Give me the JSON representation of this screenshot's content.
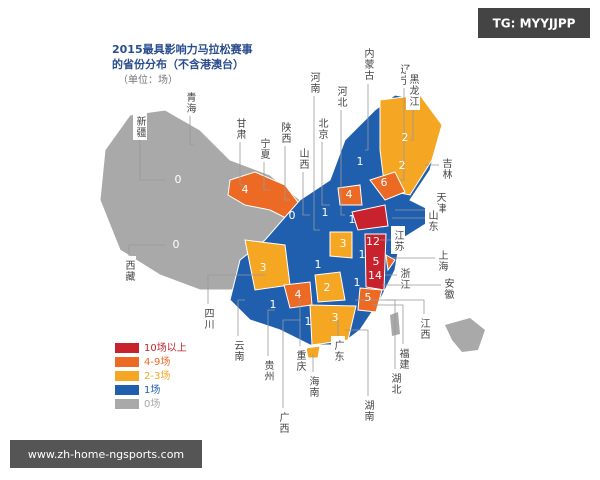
{
  "watermark_top": "TG: MYYJJPP",
  "watermark_bottom": "www.zh-home-ngsports.com",
  "title": [
    "2015最具影响力马拉松赛事",
    "的省份分布（不含港澳台）"
  ],
  "unit": "（单位：场）",
  "legend": [
    {
      "label": "10场以上",
      "color": "#c8232c"
    },
    {
      "label": "4-9场",
      "color": "#ec6a24"
    },
    {
      "label": "2-3场",
      "color": "#f5a623"
    },
    {
      "label": "1场",
      "color": "#1f5fae"
    },
    {
      "label": "0场",
      "color": "#a9a9a9"
    }
  ],
  "provinces": [
    "新疆",
    "青海",
    "甘肃",
    "宁夏",
    "陕西",
    "北京",
    "山西",
    "河南",
    "河北",
    "内蒙古",
    "辽宁",
    "黑龙江",
    "吉林",
    "天津",
    "山东",
    "江苏",
    "上海",
    "浙江",
    "安徽",
    "江西",
    "福建",
    "湖北",
    "湖南",
    "广东",
    "海南",
    "广西",
    "重庆",
    "贵州",
    "云南",
    "四川",
    "西藏"
  ],
  "map_counts": [
    0,
    0,
    0,
    4,
    1,
    2,
    2,
    6,
    4,
    1,
    1,
    1,
    3,
    12,
    3,
    1,
    5,
    14,
    1,
    4,
    2,
    5,
    1,
    3,
    1
  ]
}
